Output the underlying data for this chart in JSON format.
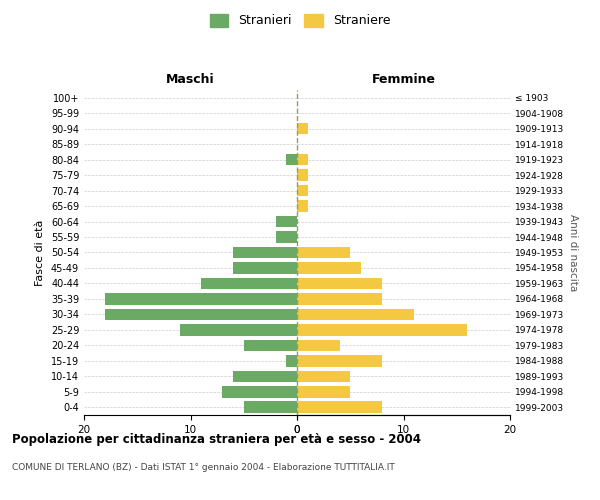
{
  "age_groups": [
    "100+",
    "95-99",
    "90-94",
    "85-89",
    "80-84",
    "75-79",
    "70-74",
    "65-69",
    "60-64",
    "55-59",
    "50-54",
    "45-49",
    "40-44",
    "35-39",
    "30-34",
    "25-29",
    "20-24",
    "15-19",
    "10-14",
    "5-9",
    "0-4"
  ],
  "birth_years": [
    "≤ 1903",
    "1904-1908",
    "1909-1913",
    "1914-1918",
    "1919-1923",
    "1924-1928",
    "1929-1933",
    "1934-1938",
    "1939-1943",
    "1944-1948",
    "1949-1953",
    "1954-1958",
    "1959-1963",
    "1964-1968",
    "1969-1973",
    "1974-1978",
    "1979-1983",
    "1984-1988",
    "1989-1993",
    "1994-1998",
    "1999-2003"
  ],
  "maschi": [
    0,
    0,
    0,
    0,
    1,
    0,
    0,
    0,
    2,
    2,
    6,
    6,
    9,
    18,
    18,
    11,
    5,
    1,
    6,
    7,
    5
  ],
  "femmine": [
    0,
    0,
    1,
    0,
    1,
    1,
    1,
    1,
    0,
    0,
    5,
    6,
    8,
    8,
    11,
    16,
    4,
    8,
    5,
    5,
    8
  ],
  "maschi_color": "#6aaa64",
  "femmine_color": "#f5c842",
  "title_main": "Popolazione per cittadinanza straniera per età e sesso - 2004",
  "subtitle": "COMUNE DI TERLANO (BZ) - Dati ISTAT 1° gennaio 2004 - Elaborazione TUTTITALIA.IT",
  "legend_maschi": "Stranieri",
  "legend_femmine": "Straniere",
  "xlabel_left": "Maschi",
  "xlabel_right": "Femmine",
  "ylabel_left": "Fasce di età",
  "ylabel_right": "Anni di nascita",
  "xlim": 20,
  "bg_color": "#ffffff",
  "grid_color": "#cccccc",
  "center_line_color": "#999966"
}
